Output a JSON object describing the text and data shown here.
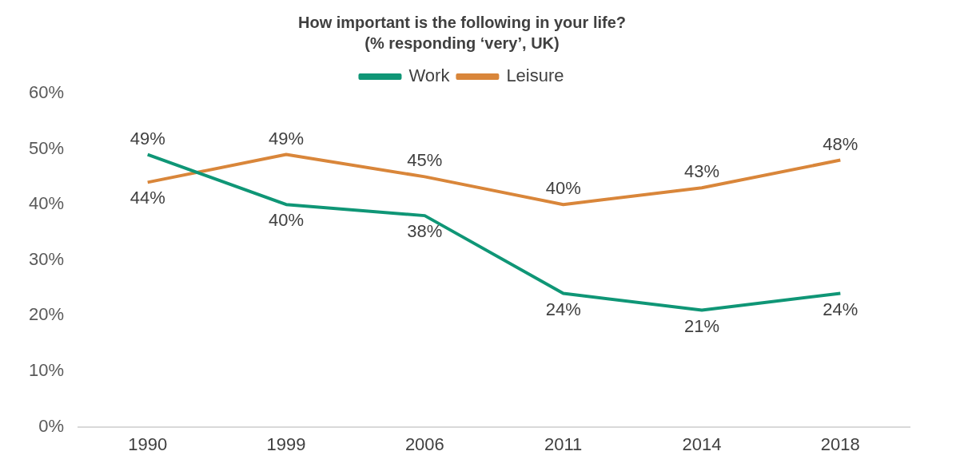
{
  "chart_data": {
    "type": "line",
    "title": "How important is the following in your life?",
    "subtitle": "(% responding ‘very’, UK)",
    "categories": [
      "1990",
      "1999",
      "2006",
      "2011",
      "2014",
      "2018"
    ],
    "series": [
      {
        "name": "Work",
        "color": "#0f9676",
        "values": [
          49,
          40,
          38,
          24,
          21,
          24
        ],
        "value_labels": [
          "49%",
          "40%",
          "38%",
          "24%",
          "21%",
          "24%"
        ]
      },
      {
        "name": "Leisure",
        "color": "#d9863a",
        "values": [
          44,
          49,
          45,
          40,
          43,
          48
        ],
        "value_labels": [
          "44%",
          "49%",
          "45%",
          "40%",
          "43%",
          "48%"
        ]
      }
    ],
    "ylim": [
      0,
      60
    ],
    "yticks": [
      {
        "value": 0,
        "label": "0%"
      },
      {
        "value": 10,
        "label": "10%"
      },
      {
        "value": 20,
        "label": "20%"
      },
      {
        "value": 30,
        "label": "30%"
      },
      {
        "value": 40,
        "label": "40%"
      },
      {
        "value": 50,
        "label": "50%"
      },
      {
        "value": 60,
        "label": "60%"
      }
    ],
    "grid": false,
    "legend": "top",
    "marker": "none",
    "line_style": "solid"
  }
}
